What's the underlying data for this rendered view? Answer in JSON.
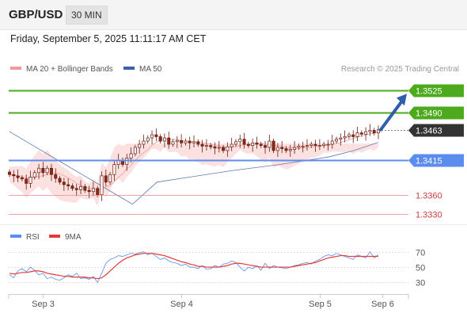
{
  "header": {
    "symbol": "GBP/USD",
    "timeframe": "30 MIN"
  },
  "timestamp": "Friday, September 5, 2025 11:11:17 AM CET",
  "credit": "Research © 2025 Trading Central",
  "colors": {
    "support": "#5b8def",
    "resistance": "#4caa1c",
    "lower": "#e88a8a",
    "price_tag": "#333333",
    "arrow": "#2f5fa8",
    "ma50": "#5e78b5",
    "bollinger_fill": "#fce1e1",
    "bull": "#ffffff",
    "bear": "#8b2a18",
    "rsi": "#5b8def",
    "rsi_ma": "#e33a3a"
  },
  "chart_data": [
    {
      "type": "candlestick",
      "legend": [
        {
          "label": "MA 20 + Bollinger Bands",
          "color": "#f39b9b"
        },
        {
          "label": "MA 50",
          "color": "#3b5fa8"
        }
      ],
      "ylim": [
        1.3322,
        1.3548
      ],
      "x_ticks": [
        {
          "label": "Sep 3",
          "index": 8
        },
        {
          "label": "Sep 4",
          "index": 41
        },
        {
          "label": "Sep 5",
          "index": 74
        },
        {
          "label": "Sep 6",
          "index": 89
        }
      ],
      "levels": [
        {
          "label": "1.3525",
          "value": 1.3525,
          "kind": "resistance"
        },
        {
          "label": "1.3490",
          "value": 1.349,
          "kind": "resistance"
        },
        {
          "label": "1.3463",
          "value": 1.3463,
          "kind": "current"
        },
        {
          "label": "1.3415",
          "value": 1.3415,
          "kind": "support"
        },
        {
          "label": "1.3360",
          "value": 1.336,
          "kind": "lower"
        },
        {
          "label": "1.3330",
          "value": 1.333,
          "kind": "lower"
        }
      ],
      "series": [
        {
          "name": "price",
          "closes": [
            1.3392,
            1.339,
            1.3387,
            1.3385,
            1.3378,
            1.3388,
            1.3395,
            1.3402,
            1.3395,
            1.3402,
            1.3392,
            1.3386,
            1.338,
            1.3376,
            1.3374,
            1.337,
            1.3368,
            1.3373,
            1.3367,
            1.3365,
            1.337,
            1.336,
            1.339,
            1.338,
            1.3392,
            1.3408,
            1.3415,
            1.3408,
            1.3418,
            1.3425,
            1.3435,
            1.344,
            1.3445,
            1.345,
            1.3455,
            1.3452,
            1.3445,
            1.345,
            1.344,
            1.3444,
            1.3446,
            1.3442,
            1.3445,
            1.3442,
            1.3444,
            1.344,
            1.3437,
            1.3438,
            1.3436,
            1.3434,
            1.3435,
            1.343,
            1.3436,
            1.344,
            1.3444,
            1.3448,
            1.344,
            1.3438,
            1.3442,
            1.344,
            1.3438,
            1.3435,
            1.3445,
            1.343,
            1.3435,
            1.3433,
            1.343,
            1.3432,
            1.3435,
            1.3437,
            1.3437,
            1.3438,
            1.344,
            1.3438,
            1.3438,
            1.344,
            1.344,
            1.3445,
            1.3448,
            1.345,
            1.3452,
            1.3455,
            1.3452,
            1.3458,
            1.3456,
            1.346,
            1.3462,
            1.3458,
            1.3463
          ],
          "ma50": [
            1.346,
            1.3437,
            1.3414,
            1.3391,
            1.3368,
            1.3345,
            1.338,
            1.3386,
            1.3392,
            1.3398,
            1.3403,
            1.3408,
            1.3414,
            1.342,
            1.343,
            1.3443
          ]
        },
        {
          "name": "Bollinger Bands",
          "band": [
            1.3337,
            1.3441
          ]
        }
      ]
    },
    {
      "type": "line",
      "legend": [
        {
          "label": "RSI",
          "color": "#5b8def"
        },
        {
          "label": "9MA",
          "color": "#e33a3a"
        }
      ],
      "ylim": [
        18,
        78
      ],
      "y_ticks": [
        "70",
        "50",
        "30"
      ],
      "series": [
        {
          "name": "RSI",
          "values": [
            40,
            36,
            45,
            48,
            44,
            50,
            46,
            40,
            42,
            35,
            37,
            34,
            33,
            36,
            40,
            38,
            42,
            35,
            36,
            34,
            38,
            30,
            42,
            55,
            60,
            62,
            65,
            64,
            66,
            68,
            67,
            69,
            70,
            66,
            68,
            64,
            60,
            62,
            58,
            56,
            55,
            52,
            54,
            50,
            50,
            48,
            52,
            47,
            48,
            52,
            50,
            54,
            55,
            58,
            56,
            50,
            45,
            50,
            48,
            52,
            46,
            55,
            48,
            52,
            50,
            49,
            48,
            50,
            52,
            53,
            55,
            56,
            54,
            58,
            60,
            64,
            66,
            65,
            68,
            66,
            64,
            62,
            60,
            66,
            64,
            62,
            70,
            62,
            66
          ]
        },
        {
          "name": "9MA",
          "values": [
            42,
            41,
            42,
            43,
            43,
            44,
            45,
            45,
            44,
            42,
            41,
            40,
            39,
            38,
            38,
            37,
            37,
            37,
            37,
            36,
            36,
            35,
            36,
            40,
            45,
            50,
            55,
            59,
            62,
            64,
            66,
            67,
            68,
            68,
            68,
            67,
            66,
            65,
            63,
            61,
            59,
            57,
            56,
            54,
            53,
            51,
            51,
            50,
            50,
            50,
            50,
            51,
            52,
            54,
            55,
            55,
            54,
            53,
            52,
            51,
            50,
            50,
            50,
            50,
            50,
            50,
            50,
            50,
            51,
            52,
            53,
            54,
            55,
            56,
            58,
            60,
            62,
            63,
            64,
            65,
            65,
            64,
            64,
            64,
            64,
            64,
            64,
            64,
            64
          ]
        }
      ]
    }
  ]
}
